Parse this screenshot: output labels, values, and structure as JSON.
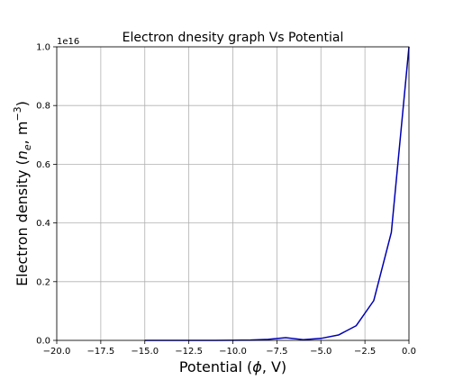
{
  "chart_data": {
    "type": "line",
    "title": "Electron dnesity graph Vs Potential",
    "xlabel_prefix": "Potential (",
    "xlabel_symbol": "ϕ",
    "xlabel_suffix": ", V)",
    "ylabel_prefix": "Electron density (",
    "ylabel_symbol": "n",
    "ylabel_sub": "e",
    "ylabel_mid": ", m",
    "ylabel_sup": "−3",
    "ylabel_suffix": ")",
    "y_offset_label": "1e16",
    "xlim": [
      -20.0,
      0.0
    ],
    "ylim": [
      0.0,
      1.0
    ],
    "x_ticks": [
      -20.0,
      -17.5,
      -15.0,
      -12.5,
      -10.0,
      -7.5,
      -5.0,
      -2.5,
      0.0
    ],
    "x_tick_labels": [
      "−20.0",
      "−17.5",
      "−15.0",
      "−12.5",
      "−10.0",
      "−7.5",
      "−5.0",
      "−2.5",
      "0.0"
    ],
    "y_ticks": [
      0.0,
      0.2,
      0.4,
      0.6,
      0.8,
      1.0
    ],
    "y_tick_labels": [
      "0.0",
      "0.2",
      "0.4",
      "0.6",
      "0.8",
      "1.0"
    ],
    "grid": true,
    "series": [
      {
        "color": "#0000b4",
        "x": [
          -15,
          -14,
          -13,
          -12,
          -11,
          -10,
          -9,
          -8,
          -7,
          -6,
          -5,
          -4,
          -3,
          -2,
          -1,
          0
        ],
        "y": [
          3e-06,
          8e-06,
          2.3e-05,
          6.1e-05,
          0.000167,
          0.000454,
          0.001234,
          0.003355,
          0.00912,
          0.002479,
          0.006738,
          0.018316,
          0.049787,
          0.135335,
          0.367879,
          1.0
        ]
      }
    ]
  }
}
